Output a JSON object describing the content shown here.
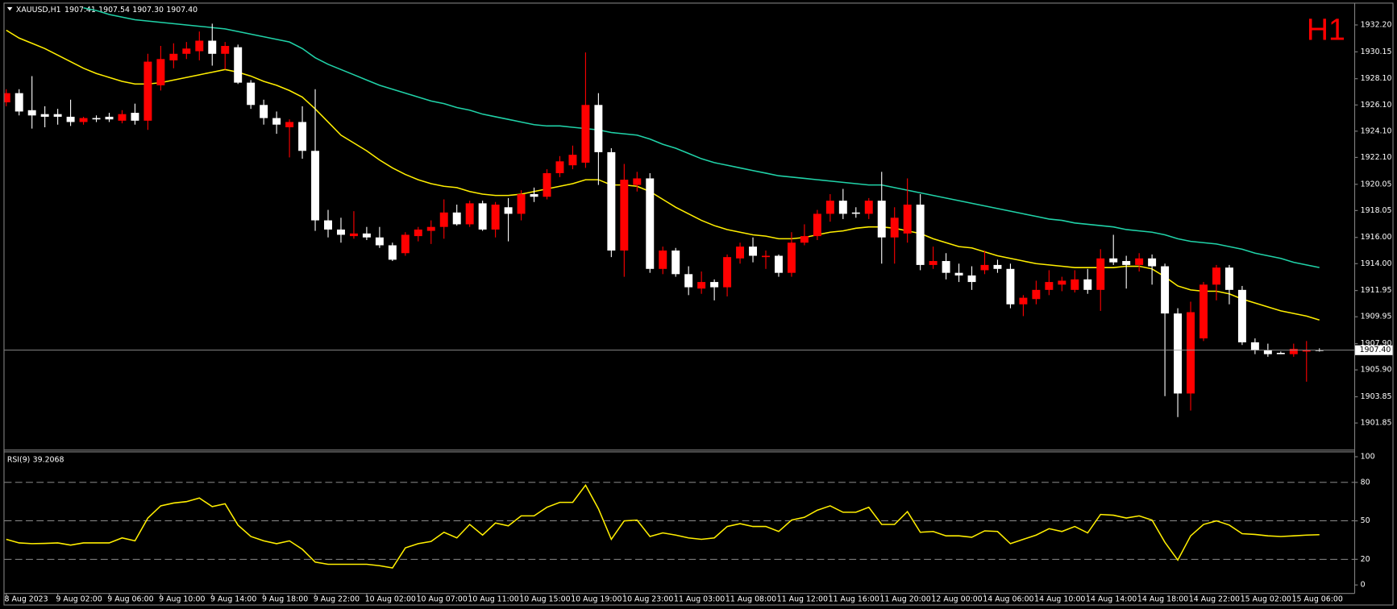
{
  "chart_data": [
    {
      "type": "candlestick",
      "symbol": "XAUUSD,H1",
      "timeframe": "H1",
      "last_bar_labels": [
        "1907.41",
        "1907.54",
        "1907.30",
        "1907.40"
      ],
      "price_label": "1907.40",
      "categories": [
        "8 Aug 2023",
        null,
        null,
        null,
        "9 Aug 02:00",
        null,
        null,
        null,
        "9 Aug 06:00",
        null,
        null,
        null,
        "9 Aug 10:00",
        null,
        null,
        null,
        "9 Aug 14:00",
        null,
        null,
        null,
        "9 Aug 18:00",
        null,
        null,
        null,
        "9 Aug 22:00",
        null,
        null,
        null,
        "10 Aug 02:00",
        null,
        null,
        null,
        "10 Aug 07:00",
        null,
        null,
        null,
        "10 Aug 11:00",
        null,
        null,
        null,
        "10 Aug 15:00",
        null,
        null,
        null,
        "10 Aug 19:00",
        null,
        null,
        null,
        "10 Aug 23:00",
        null,
        null,
        null,
        "11 Aug 03:00",
        null,
        null,
        null,
        "11 Aug 08:00",
        null,
        null,
        null,
        "11 Aug 12:00",
        null,
        null,
        null,
        "11 Aug 16:00",
        null,
        null,
        null,
        "11 Aug 20:00",
        null,
        null,
        null,
        "12 Aug 00:00",
        null,
        null,
        null,
        "14 Aug 06:00",
        null,
        null,
        null,
        "14 Aug 10:00",
        null,
        null,
        null,
        "14 Aug 14:00",
        null,
        null,
        null,
        "14 Aug 18:00",
        null,
        null,
        null,
        "14 Aug 22:00",
        null,
        null,
        null,
        "15 Aug 02:00",
        null,
        null,
        null,
        "15 Aug 06:00",
        null,
        null
      ],
      "open": [
        1926.3,
        1927.0,
        1925.7,
        1925.4,
        1925.4,
        1925.2,
        1924.8,
        1925.1,
        1925.2,
        1924.9,
        1925.5,
        1924.9,
        1927.6,
        1929.5,
        1930.0,
        1930.2,
        1931.0,
        1930.0,
        1930.5,
        1927.8,
        1926.1,
        1925.1,
        1924.4,
        1924.8,
        1922.6,
        1917.3,
        1916.6,
        1916.1,
        1916.3,
        1916.0,
        1915.4,
        1914.8,
        1916.1,
        1916.5,
        1916.8,
        1917.9,
        1917.0,
        1918.6,
        1916.6,
        1918.3,
        1917.8,
        1919.3,
        1919.1,
        1920.9,
        1921.5,
        1921.7,
        1926.1,
        1922.5,
        1915.0,
        1920.0,
        1920.5,
        1913.6,
        1915.0,
        1913.2,
        1912.1,
        1912.6,
        1912.2,
        1914.4,
        1915.3,
        1914.5,
        1914.6,
        1913.3,
        1915.6,
        1916.1,
        1917.8,
        1918.8,
        1917.9,
        1917.8,
        1918.8,
        1916.0,
        1916.3,
        1918.5,
        1913.9,
        1914.2,
        1913.3,
        1913.1,
        1913.5,
        1913.9,
        1913.6,
        1910.9,
        1911.3,
        1912.0,
        1912.4,
        1912.0,
        1912.8,
        1912.0,
        1914.4,
        1914.2,
        1913.9,
        1914.4,
        1913.8,
        1910.2,
        1904.1,
        1908.3,
        1912.4,
        1913.7,
        1912.0,
        1908.0,
        1907.4,
        1907.2,
        1907.1,
        1907.3,
        1907.41
      ],
      "high": [
        1927.3,
        1927.3,
        1928.3,
        1926.0,
        1925.8,
        1926.5,
        1925.2,
        1925.3,
        1925.5,
        1925.7,
        1926.2,
        1930.0,
        1930.6,
        1930.8,
        1930.9,
        1931.7,
        1932.3,
        1930.9,
        1930.7,
        1928.0,
        1926.5,
        1925.6,
        1925.0,
        1926.0,
        1927.3,
        1918.1,
        1917.5,
        1918.0,
        1916.8,
        1916.8,
        1915.6,
        1916.4,
        1916.8,
        1917.3,
        1918.9,
        1918.5,
        1918.8,
        1918.8,
        1918.7,
        1919.0,
        1919.6,
        1919.8,
        1921.2,
        1922.2,
        1923.0,
        1930.1,
        1927.0,
        1922.8,
        1921.6,
        1921.0,
        1920.9,
        1915.3,
        1915.2,
        1913.8,
        1913.4,
        1912.8,
        1914.7,
        1915.6,
        1916.0,
        1915.0,
        1914.7,
        1916.4,
        1917.0,
        1918.1,
        1919.3,
        1919.7,
        1918.3,
        1919.0,
        1921.0,
        1918.3,
        1920.5,
        1919.3,
        1915.3,
        1914.8,
        1914.0,
        1913.8,
        1915.0,
        1914.3,
        1914.0,
        1911.6,
        1912.7,
        1913.5,
        1913.0,
        1913.5,
        1913.6,
        1915.1,
        1916.2,
        1914.6,
        1914.8,
        1914.7,
        1914.0,
        1910.6,
        1911.1,
        1912.6,
        1913.9,
        1913.9,
        1912.3,
        1908.3,
        1907.9,
        1907.3,
        1907.9,
        1908.1,
        1907.54
      ],
      "low": [
        1926.0,
        1925.3,
        1924.3,
        1924.4,
        1924.6,
        1924.5,
        1924.6,
        1924.8,
        1924.8,
        1924.7,
        1924.6,
        1924.2,
        1927.2,
        1928.9,
        1929.6,
        1929.5,
        1929.1,
        1928.8,
        1927.7,
        1925.8,
        1924.6,
        1923.9,
        1922.1,
        1922.0,
        1916.5,
        1916.0,
        1915.6,
        1915.9,
        1915.8,
        1915.2,
        1914.2,
        1914.6,
        1915.7,
        1915.5,
        1915.9,
        1916.9,
        1916.8,
        1916.5,
        1916.0,
        1915.7,
        1917.3,
        1918.7,
        1918.9,
        1920.6,
        1921.2,
        1921.3,
        1920.0,
        1914.5,
        1913.0,
        1919.5,
        1913.3,
        1913.2,
        1913.0,
        1911.6,
        1911.7,
        1911.2,
        1911.5,
        1914.0,
        1914.1,
        1913.6,
        1913.0,
        1913.0,
        1915.4,
        1915.8,
        1917.2,
        1917.4,
        1917.5,
        1917.4,
        1914.0,
        1914.0,
        1915.6,
        1913.5,
        1913.6,
        1912.8,
        1912.6,
        1912.0,
        1913.2,
        1913.3,
        1910.6,
        1910.0,
        1910.9,
        1911.6,
        1911.9,
        1911.8,
        1911.7,
        1910.4,
        1913.9,
        1912.1,
        1913.4,
        1912.4,
        1903.9,
        1902.3,
        1902.8,
        1908.1,
        1911.2,
        1910.9,
        1907.8,
        1907.1,
        1906.9,
        1907.1,
        1906.9,
        1905.0,
        1907.3
      ],
      "close": [
        1927.0,
        1925.6,
        1925.3,
        1925.2,
        1925.2,
        1924.8,
        1925.1,
        1925.0,
        1925.0,
        1925.4,
        1924.9,
        1929.4,
        1929.6,
        1930.0,
        1930.4,
        1931.0,
        1930.0,
        1930.6,
        1927.8,
        1926.1,
        1925.1,
        1924.6,
        1924.8,
        1922.6,
        1917.3,
        1916.6,
        1916.2,
        1916.3,
        1916.0,
        1915.4,
        1914.3,
        1916.2,
        1916.6,
        1916.8,
        1917.9,
        1917.0,
        1918.6,
        1916.6,
        1918.5,
        1917.8,
        1919.3,
        1919.1,
        1920.9,
        1921.8,
        1922.3,
        1926.1,
        1922.5,
        1915.0,
        1920.4,
        1920.5,
        1913.6,
        1915.0,
        1913.2,
        1912.2,
        1912.6,
        1912.2,
        1914.5,
        1915.3,
        1914.6,
        1914.6,
        1913.3,
        1915.6,
        1916.1,
        1917.8,
        1918.8,
        1917.8,
        1917.8,
        1918.8,
        1916.0,
        1917.5,
        1918.5,
        1913.9,
        1914.2,
        1913.3,
        1913.1,
        1912.6,
        1913.9,
        1913.6,
        1910.9,
        1911.4,
        1912.0,
        1912.6,
        1912.7,
        1912.8,
        1912.0,
        1914.4,
        1914.1,
        1913.9,
        1914.4,
        1913.8,
        1910.2,
        1904.1,
        1910.3,
        1912.4,
        1913.7,
        1912.0,
        1908.0,
        1907.4,
        1907.1,
        1907.1,
        1907.5,
        1907.4,
        1907.4
      ],
      "up_color": "#ff0000",
      "down_color": "#ffffff",
      "overlays": [
        {
          "color": "#ffee00",
          "values": [
            1931.8,
            1931.2,
            1930.8,
            1930.4,
            1929.9,
            1929.4,
            1928.9,
            1928.5,
            1928.2,
            1927.9,
            1927.7,
            1927.7,
            1927.8,
            1928.0,
            1928.2,
            1928.4,
            1928.6,
            1928.8,
            1928.6,
            1928.3,
            1927.9,
            1927.6,
            1927.2,
            1926.7,
            1925.8,
            1924.8,
            1923.8,
            1923.2,
            1922.6,
            1921.9,
            1921.3,
            1920.8,
            1920.4,
            1920.1,
            1919.9,
            1919.8,
            1919.5,
            1919.3,
            1919.2,
            1919.2,
            1919.3,
            1919.5,
            1919.7,
            1919.9,
            1920.1,
            1920.4,
            1920.4,
            1920.0,
            1920.0,
            1919.9,
            1919.5,
            1918.9,
            1918.3,
            1917.8,
            1917.3,
            1916.9,
            1916.6,
            1916.4,
            1916.2,
            1916.1,
            1915.9,
            1915.9,
            1916.0,
            1916.2,
            1916.4,
            1916.5,
            1916.7,
            1916.8,
            1916.8,
            1916.7,
            1916.5,
            1916.3,
            1915.9,
            1915.6,
            1915.3,
            1915.2,
            1914.9,
            1914.6,
            1914.4,
            1914.2,
            1914.0,
            1913.9,
            1913.8,
            1913.7,
            1913.7,
            1913.7,
            1913.7,
            1913.8,
            1913.8,
            1913.6,
            1913.0,
            1912.3,
            1912.0,
            1911.9,
            1911.9,
            1911.7,
            1911.3,
            1911.0,
            1910.7,
            1910.4,
            1910.2,
            1910.0,
            1909.7
          ]
        },
        {
          "color": "#20d2a8",
          "values": [
            null,
            null,
            null,
            null,
            null,
            null,
            1933.5,
            1933.3,
            1933.0,
            1932.8,
            1932.6,
            1932.5,
            1932.4,
            1932.3,
            1932.2,
            1932.1,
            1932.0,
            1931.9,
            1931.7,
            1931.5,
            1931.3,
            1931.1,
            1930.9,
            1930.4,
            1929.7,
            1929.2,
            1928.8,
            1928.4,
            1928.0,
            1927.6,
            1927.3,
            1927.0,
            1926.7,
            1926.4,
            1926.2,
            1925.9,
            1925.7,
            1925.4,
            1925.2,
            1925.0,
            1924.8,
            1924.6,
            1924.5,
            1924.5,
            1924.4,
            1924.3,
            1924.2,
            1924.0,
            1923.9,
            1923.8,
            1923.5,
            1923.1,
            1922.8,
            1922.4,
            1922.0,
            1921.7,
            1921.5,
            1921.3,
            1921.1,
            1920.9,
            1920.7,
            1920.6,
            1920.5,
            1920.4,
            1920.3,
            1920.2,
            1920.1,
            1920.0,
            1920.0,
            1919.8,
            1919.6,
            1919.4,
            1919.2,
            1919.0,
            1918.8,
            1918.6,
            1918.4,
            1918.2,
            1918.0,
            1917.8,
            1917.6,
            1917.4,
            1917.3,
            1917.1,
            1917.0,
            1916.9,
            1916.8,
            1916.6,
            1916.5,
            1916.4,
            1916.2,
            1915.9,
            1915.7,
            1915.6,
            1915.5,
            1915.3,
            1915.1,
            1914.8,
            1914.6,
            1914.4,
            1914.1,
            1913.9,
            1913.7
          ]
        }
      ],
      "ylim": [
        1899.82,
        1933.83
      ],
      "yticks": [
        {
          "value": 1932.2,
          "label": "1932.20"
        },
        1930.15,
        {
          "value": 1928.1,
          "label": "1928.10"
        },
        {
          "value": 1926.1,
          "label": "1926.10"
        },
        {
          "value": 1924.1,
          "label": "1924.10"
        },
        {
          "value": 1922.1,
          "label": "1922.10"
        },
        1920.05,
        1918.05,
        {
          "value": 1916,
          "label": "1916.00"
        },
        {
          "value": 1914,
          "label": "1914.00"
        },
        1911.95,
        1909.95,
        {
          "value": 1907.9,
          "label": "1907.90"
        },
        {
          "value": 1905.9,
          "label": "1905.90"
        },
        1903.85,
        1901.85
      ]
    },
    {
      "type": "line",
      "label": "RSI(9)",
      "color": "#ffee00",
      "values": [
        35.6,
        32.8,
        32.2,
        32.4,
        32.8,
        31.1,
        32.8,
        32.8,
        32.8,
        36.7,
        34.4,
        52.2,
        61.7,
        63.9,
        65.0,
        67.8,
        61.1,
        63.3,
        46.7,
        37.8,
        34.4,
        32.2,
        34.4,
        27.8,
        17.8,
        16.1,
        16.1,
        16.1,
        16.1,
        15.0,
        13.3,
        28.9,
        32.2,
        33.9,
        41.1,
        36.7,
        47.2,
        38.9,
        48.3,
        46.1,
        53.9,
        53.9,
        60.6,
        64.4,
        64.4,
        77.8,
        59.4,
        35.6,
        50.0,
        50.6,
        37.8,
        40.6,
        38.9,
        36.7,
        35.6,
        36.7,
        45.6,
        47.8,
        45.6,
        45.6,
        41.7,
        50.6,
        52.8,
        58.3,
        61.7,
        56.7,
        56.7,
        60.6,
        47.2,
        47.2,
        57.2,
        41.1,
        41.7,
        38.3,
        38.3,
        37.2,
        42.2,
        41.7,
        32.2,
        35.6,
        38.9,
        43.9,
        41.7,
        45.6,
        40.6,
        55.0,
        54.4,
        52.2,
        53.9,
        50.6,
        33.3,
        19.4,
        38.3,
        47.2,
        50.0,
        46.7,
        40.0,
        39.4,
        38.3,
        37.8,
        38.3,
        38.9,
        39.2068
      ],
      "ylim": [
        0,
        100
      ],
      "yticks": [
        0,
        20,
        50,
        80,
        100
      ],
      "grid": "dashed"
    }
  ]
}
